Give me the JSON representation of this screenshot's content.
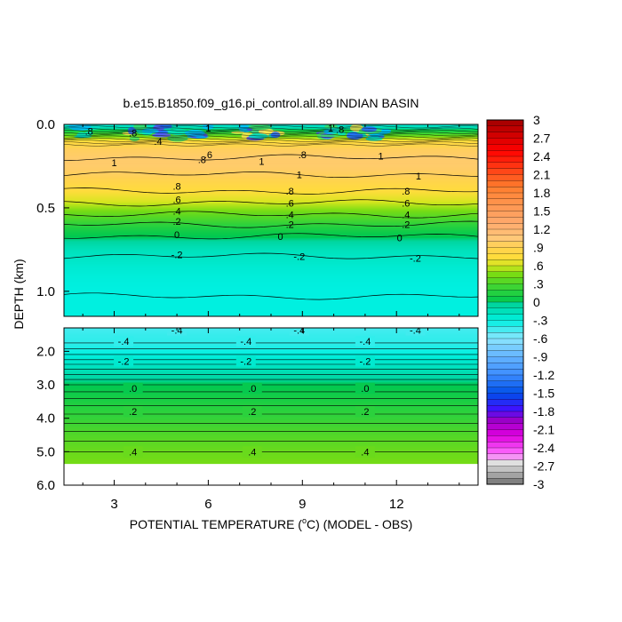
{
  "chart_data": {
    "type": "heatmap",
    "title": "b.e15.B1850.f09_g16.pi_control.all.89 INDIAN BASIN",
    "xlabel_prefix": "POTENTIAL TEMPERATURE (",
    "xlabel_sup": "o",
    "xlabel_suffix": "C) (MODEL - OBS)",
    "ylabel": "DEPTH (km)",
    "x_range": [
      1.4,
      14.6
    ],
    "x_ticks": [
      3,
      6,
      9,
      12
    ],
    "upper_panel": {
      "depth_range": [
        0.0,
        1.15
      ],
      "y_ticks": [
        "0.0",
        "0.5",
        "1.0"
      ],
      "y_tick_values": [
        0.0,
        0.5,
        1.0
      ],
      "profile_depths": [
        0.0,
        0.05,
        0.1,
        0.15,
        0.2,
        0.25,
        0.3,
        0.35,
        0.4,
        0.45,
        0.5,
        0.55,
        0.6,
        0.65,
        0.7,
        0.75,
        0.8,
        0.85,
        0.9,
        0.95,
        1.0,
        1.05,
        1.1,
        1.15
      ],
      "profile_values": [
        -0.3,
        0.2,
        0.75,
        0.95,
        1.0,
        1.0,
        0.95,
        0.85,
        0.75,
        0.65,
        0.5,
        0.35,
        0.2,
        0.05,
        -0.05,
        -0.15,
        -0.2,
        -0.24,
        -0.27,
        -0.29,
        -0.3,
        -0.3,
        -0.3,
        -0.3
      ],
      "contour_labels": [
        {
          "text": "1",
          "x": 6.0,
          "depth": 0.02
        },
        {
          "text": ".8",
          "x": 3.6,
          "depth": 0.05
        },
        {
          "text": "1",
          "x": 9.9,
          "depth": 0.02
        },
        {
          "text": ".8",
          "x": 10.2,
          "depth": 0.03
        },
        {
          "text": ".8",
          "x": 2.2,
          "depth": 0.04
        },
        {
          "text": ".4",
          "x": 4.4,
          "depth": 0.1
        },
        {
          "text": ".6",
          "x": 6.0,
          "depth": 0.18
        },
        {
          "text": ".8",
          "x": 5.8,
          "depth": 0.21
        },
        {
          "text": ".8",
          "x": 9.0,
          "depth": 0.18
        },
        {
          "text": "1",
          "x": 3.0,
          "depth": 0.23
        },
        {
          "text": "1",
          "x": 7.7,
          "depth": 0.22
        },
        {
          "text": "1",
          "x": 11.5,
          "depth": 0.19
        },
        {
          "text": "1",
          "x": 8.9,
          "depth": 0.3
        },
        {
          "text": "1",
          "x": 12.7,
          "depth": 0.31
        },
        {
          "text": ".8",
          "x": 5.0,
          "depth": 0.37
        },
        {
          "text": ".8",
          "x": 8.6,
          "depth": 0.4
        },
        {
          "text": ".8",
          "x": 12.3,
          "depth": 0.4
        },
        {
          "text": ".6",
          "x": 5.0,
          "depth": 0.45
        },
        {
          "text": ".6",
          "x": 8.6,
          "depth": 0.47
        },
        {
          "text": ".6",
          "x": 12.3,
          "depth": 0.47
        },
        {
          "text": ".4",
          "x": 5.0,
          "depth": 0.52
        },
        {
          "text": ".4",
          "x": 8.6,
          "depth": 0.54
        },
        {
          "text": ".4",
          "x": 12.3,
          "depth": 0.54
        },
        {
          "text": ".2",
          "x": 5.0,
          "depth": 0.58
        },
        {
          "text": ".2",
          "x": 8.6,
          "depth": 0.6
        },
        {
          "text": ".2",
          "x": 12.3,
          "depth": 0.6
        },
        {
          "text": "0",
          "x": 5.0,
          "depth": 0.66
        },
        {
          "text": "0",
          "x": 8.3,
          "depth": 0.67
        },
        {
          "text": "0",
          "x": 12.1,
          "depth": 0.68
        },
        {
          "text": "-.2",
          "x": 5.0,
          "depth": 0.78
        },
        {
          "text": "-.2",
          "x": 8.9,
          "depth": 0.79
        },
        {
          "text": "-.2",
          "x": 12.6,
          "depth": 0.8
        }
      ],
      "contour_lines": [
        {
          "value": 1.0,
          "depth": 0.2
        },
        {
          "value": 1.0,
          "depth": 0.3
        },
        {
          "value": 0.8,
          "depth": 0.4
        },
        {
          "value": 0.6,
          "depth": 0.47
        },
        {
          "value": 0.4,
          "depth": 0.54
        },
        {
          "value": 0.2,
          "depth": 0.6
        },
        {
          "value": 0.0,
          "depth": 0.67
        },
        {
          "value": -0.2,
          "depth": 0.79
        },
        {
          "value": -0.3,
          "depth": 1.03
        }
      ]
    },
    "lower_panel": {
      "depth_range": [
        1.3,
        6.0
      ],
      "data_depth_max": 5.35,
      "y_ticks": [
        "2.0",
        "3.0",
        "4.0",
        "5.0",
        "6.0"
      ],
      "y_tick_values": [
        2.0,
        3.0,
        4.0,
        5.0,
        6.0
      ],
      "profile_depths": [
        1.3,
        1.5,
        1.75,
        2.0,
        2.25,
        2.5,
        2.75,
        3.0,
        3.25,
        3.5,
        3.75,
        4.0,
        4.25,
        4.5,
        4.75,
        5.0,
        5.35
      ],
      "profile_values": [
        -0.45,
        -0.42,
        -0.4,
        -0.33,
        -0.25,
        -0.16,
        -0.08,
        0.0,
        0.06,
        0.12,
        0.18,
        0.22,
        0.27,
        0.32,
        0.36,
        0.4,
        0.44
      ],
      "contour_labels": [
        {
          "text": "-.4",
          "x": 5.0,
          "depth": 1.37
        },
        {
          "text": "-.4",
          "x": 8.9,
          "depth": 1.37
        },
        {
          "text": "-.4",
          "x": 12.6,
          "depth": 1.37
        },
        {
          "text": "-.4",
          "x": 3.3,
          "depth": 1.7
        },
        {
          "text": "-.4",
          "x": 7.2,
          "depth": 1.7
        },
        {
          "text": "-.4",
          "x": 11.0,
          "depth": 1.7
        },
        {
          "text": "-.2",
          "x": 3.3,
          "depth": 2.3
        },
        {
          "text": "-.2",
          "x": 7.2,
          "depth": 2.3
        },
        {
          "text": "-.2",
          "x": 11.0,
          "depth": 2.3
        },
        {
          "text": ".0",
          "x": 3.6,
          "depth": 3.1
        },
        {
          "text": ".0",
          "x": 7.4,
          "depth": 3.1
        },
        {
          "text": ".0",
          "x": 11.0,
          "depth": 3.1
        },
        {
          "text": ".2",
          "x": 3.6,
          "depth": 3.8
        },
        {
          "text": ".2",
          "x": 7.4,
          "depth": 3.8
        },
        {
          "text": ".2",
          "x": 11.0,
          "depth": 3.8
        },
        {
          "text": ".4",
          "x": 3.6,
          "depth": 5.0
        },
        {
          "text": ".4",
          "x": 7.4,
          "depth": 5.0
        },
        {
          "text": ".4",
          "x": 11.0,
          "depth": 5.0
        }
      ]
    },
    "colorbar": {
      "min": -3,
      "max": 3,
      "labels": [
        "3",
        "2.7",
        "2.4",
        "2.1",
        "1.8",
        "1.5",
        "1.2",
        ".9",
        ".6",
        ".3",
        "0",
        "-.3",
        "-.6",
        "-.9",
        "-1.2",
        "-1.5",
        "-1.8",
        "-2.1",
        "-2.4",
        "-2.7",
        "-3"
      ],
      "color_stops": [
        {
          "v": -3.0,
          "c": "#707070"
        },
        {
          "v": -2.8,
          "c": "#b4b4b4"
        },
        {
          "v": -2.65,
          "c": "#e0e0e0"
        },
        {
          "v": -2.5,
          "c": "#ff6dff"
        },
        {
          "v": -2.2,
          "c": "#e000e0"
        },
        {
          "v": -1.95,
          "c": "#9a00c8"
        },
        {
          "v": -1.75,
          "c": "#3c14ff"
        },
        {
          "v": -1.5,
          "c": "#0050e8"
        },
        {
          "v": -1.2,
          "c": "#3c8cff"
        },
        {
          "v": -0.9,
          "c": "#64b4ff"
        },
        {
          "v": -0.6,
          "c": "#8ce6ff"
        },
        {
          "v": -0.3,
          "c": "#00f0e0"
        },
        {
          "v": -0.05,
          "c": "#00d6a0"
        },
        {
          "v": 0.0,
          "c": "#00c850"
        },
        {
          "v": 0.2,
          "c": "#2ed23c"
        },
        {
          "v": 0.45,
          "c": "#78dc14"
        },
        {
          "v": 0.6,
          "c": "#d2e61e"
        },
        {
          "v": 0.75,
          "c": "#ffdc3c"
        },
        {
          "v": 0.9,
          "c": "#ffd250"
        },
        {
          "v": 1.05,
          "c": "#ffc878"
        },
        {
          "v": 1.3,
          "c": "#ffaa6e"
        },
        {
          "v": 1.6,
          "c": "#ff9650"
        },
        {
          "v": 1.9,
          "c": "#ff7d2d"
        },
        {
          "v": 2.2,
          "c": "#ff3c14"
        },
        {
          "v": 2.5,
          "c": "#ff0000"
        },
        {
          "v": 2.8,
          "c": "#c80000"
        },
        {
          "v": 3.0,
          "c": "#a00000"
        }
      ]
    }
  }
}
